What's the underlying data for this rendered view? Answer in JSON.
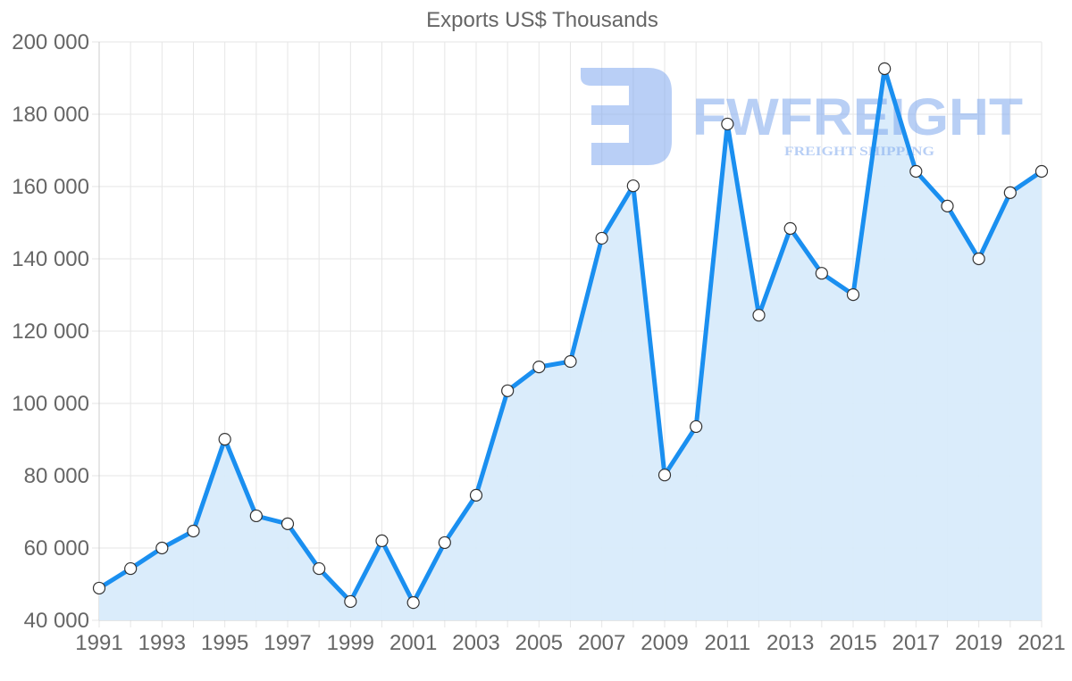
{
  "chart_data": {
    "type": "area",
    "title": "Exports US$ Thousands",
    "xlabel": "",
    "ylabel": "",
    "x": [
      1991,
      1992,
      1993,
      1994,
      1995,
      1996,
      1997,
      1998,
      1999,
      2000,
      2001,
      2002,
      2003,
      2004,
      2005,
      2006,
      2007,
      2008,
      2009,
      2010,
      2011,
      2012,
      2013,
      2014,
      2015,
      2016,
      2017,
      2018,
      2019,
      2020,
      2021
    ],
    "series": [
      {
        "name": "Exports US$ Thousands",
        "values": [
          48900,
          54300,
          60000,
          64700,
          90100,
          68900,
          66700,
          54300,
          45200,
          62000,
          44900,
          61500,
          74600,
          103500,
          110100,
          111600,
          145700,
          160200,
          80200,
          93600,
          177300,
          124400,
          148400,
          136000,
          130100,
          192600,
          164200,
          154600,
          140000,
          158300,
          164200
        ]
      }
    ],
    "ylim": [
      40000,
      200000
    ],
    "yticks": [
      "200 000",
      "180 000",
      "160 000",
      "140 000",
      "120 000",
      "100 000",
      "80 000",
      "60 000",
      "40 000"
    ],
    "xticks": [
      "1991",
      "1993",
      "1995",
      "1997",
      "1999",
      "2001",
      "2003",
      "2005",
      "2007",
      "2009",
      "2011",
      "2013",
      "2015",
      "2017",
      "2019",
      "2021"
    ],
    "grid": true,
    "legend": "none",
    "colors": {
      "line": "#1a8ff0",
      "fill": "#d8ebfb",
      "point_fill": "#ffffff",
      "point_stroke": "#333333"
    }
  },
  "watermark": {
    "brand": "FWFREIGHT",
    "tagline": "FREIGHT SHIPPING",
    "color": "#7fa8ee"
  }
}
